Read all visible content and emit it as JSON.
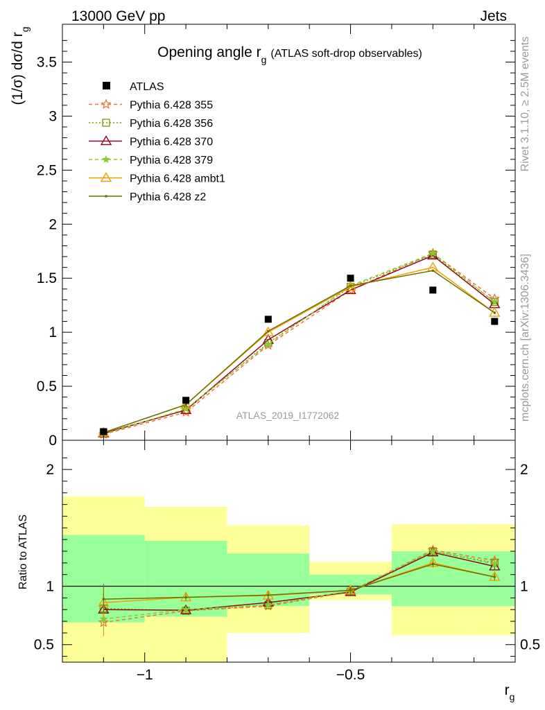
{
  "header": {
    "left": "13000 GeV pp",
    "right": "Jets"
  },
  "side_labels": {
    "rivet": "Rivet 3.1.10, ≥ 2.5M events",
    "mcplots": "mcplots.cern.ch [arXiv:1306.3436]"
  },
  "analysis_id": "ATLAS_2019_I1772062",
  "chart_data": [
    {
      "type": "line",
      "title": "Opening angle r",
      "title_subscript": "g",
      "subtitle": "(ATLAS soft-drop observables)",
      "ylabel": "(1/σ) dσ/d r",
      "ylabel_subscript": "g",
      "xlabel": "",
      "xlim": [
        -1.2,
        -0.1
      ],
      "ylim": [
        0,
        3.85
      ],
      "y_ticks": [
        "0",
        "0.5",
        "1",
        "1.5",
        "2",
        "2.5",
        "3",
        "3.5"
      ],
      "grid": false,
      "legend_position": "top-left",
      "x": [
        -1.1,
        -0.9,
        -0.7,
        -0.5,
        -0.3,
        -0.15
      ],
      "data": {
        "name": "ATLAS",
        "values": [
          0.08,
          0.37,
          1.12,
          1.5,
          1.39,
          1.1
        ],
        "errors": [
          0.01,
          0.02,
          0.03,
          0.03,
          0.03,
          0.03
        ]
      },
      "series": [
        {
          "name": "Pythia 6.428 355",
          "color": "#f07030",
          "dash": "5,4",
          "marker": "star",
          "values": [
            0.055,
            0.26,
            0.88,
            1.39,
            1.73,
            1.31
          ]
        },
        {
          "name": "Pythia 6.428 356",
          "color": "#7a9a00",
          "dash": "2,3",
          "marker": "square",
          "values": [
            0.07,
            0.28,
            0.9,
            1.42,
            1.72,
            1.28
          ]
        },
        {
          "name": "Pythia 6.428 370",
          "color": "#8b0a1e",
          "dash": "",
          "marker": "triangle",
          "values": [
            0.064,
            0.28,
            0.93,
            1.39,
            1.71,
            1.26
          ]
        },
        {
          "name": "Pythia 6.428 379",
          "color": "#8cc832",
          "dash": "5,4",
          "marker": "star-small",
          "values": [
            0.058,
            0.29,
            0.89,
            1.43,
            1.73,
            1.28
          ]
        },
        {
          "name": "Pythia 6.428 ambt1",
          "color": "#f0a000",
          "dash": "",
          "marker": "triangle",
          "values": [
            0.07,
            0.33,
            1.0,
            1.42,
            1.6,
            1.18
          ]
        },
        {
          "name": "Pythia 6.428 z2",
          "color": "#6e6e00",
          "dash": "",
          "marker": "dot",
          "values": [
            0.072,
            0.33,
            1.01,
            1.43,
            1.57,
            1.18
          ]
        }
      ]
    },
    {
      "type": "line",
      "title": "",
      "ylabel": "Ratio to ATLAS",
      "xlabel": "r",
      "xlabel_subscript": "g",
      "xlim": [
        -1.2,
        -0.1
      ],
      "ylim": [
        0.35,
        2.25
      ],
      "x_ticks": [
        "−1",
        "−0.5"
      ],
      "y_ticks": [
        "0.5",
        "1",
        "2"
      ],
      "bands": {
        "edges": [
          -1.2,
          -1.0,
          -0.8,
          -0.6,
          -0.4,
          -0.2,
          -0.1
        ],
        "outer_color": "#ffff99",
        "inner_color": "#99ff99",
        "outer": [
          [
            0.3,
            1.77
          ],
          [
            0.3,
            1.68
          ],
          [
            0.6,
            1.52
          ],
          [
            0.88,
            1.21
          ],
          [
            0.58,
            1.53
          ],
          [
            0.58,
            1.53
          ]
        ],
        "inner": [
          [
            0.69,
            1.44
          ],
          [
            0.74,
            1.39
          ],
          [
            0.83,
            1.28
          ],
          [
            0.93,
            1.1
          ],
          [
            0.83,
            1.3
          ],
          [
            0.83,
            1.3
          ]
        ]
      },
      "series": [
        {
          "name": "Pythia 6.428 355",
          "values": [
            0.69,
            0.79,
            0.83,
            0.955,
            1.31,
            1.22
          ]
        },
        {
          "name": "Pythia 6.428 356",
          "values": [
            0.81,
            0.79,
            0.84,
            0.955,
            1.3,
            1.2
          ]
        },
        {
          "name": "Pythia 6.428 370",
          "values": [
            0.8,
            0.795,
            0.86,
            0.95,
            1.29,
            1.17
          ]
        },
        {
          "name": "Pythia 6.428 379",
          "values": [
            0.72,
            0.8,
            0.84,
            0.96,
            1.3,
            1.19
          ]
        },
        {
          "name": "Pythia 6.428 ambt1",
          "values": [
            0.86,
            0.905,
            0.92,
            0.965,
            1.2,
            1.08
          ]
        },
        {
          "name": "Pythia 6.428 z2",
          "values": [
            0.89,
            0.905,
            0.925,
            0.965,
            1.19,
            1.08
          ]
        }
      ]
    }
  ]
}
